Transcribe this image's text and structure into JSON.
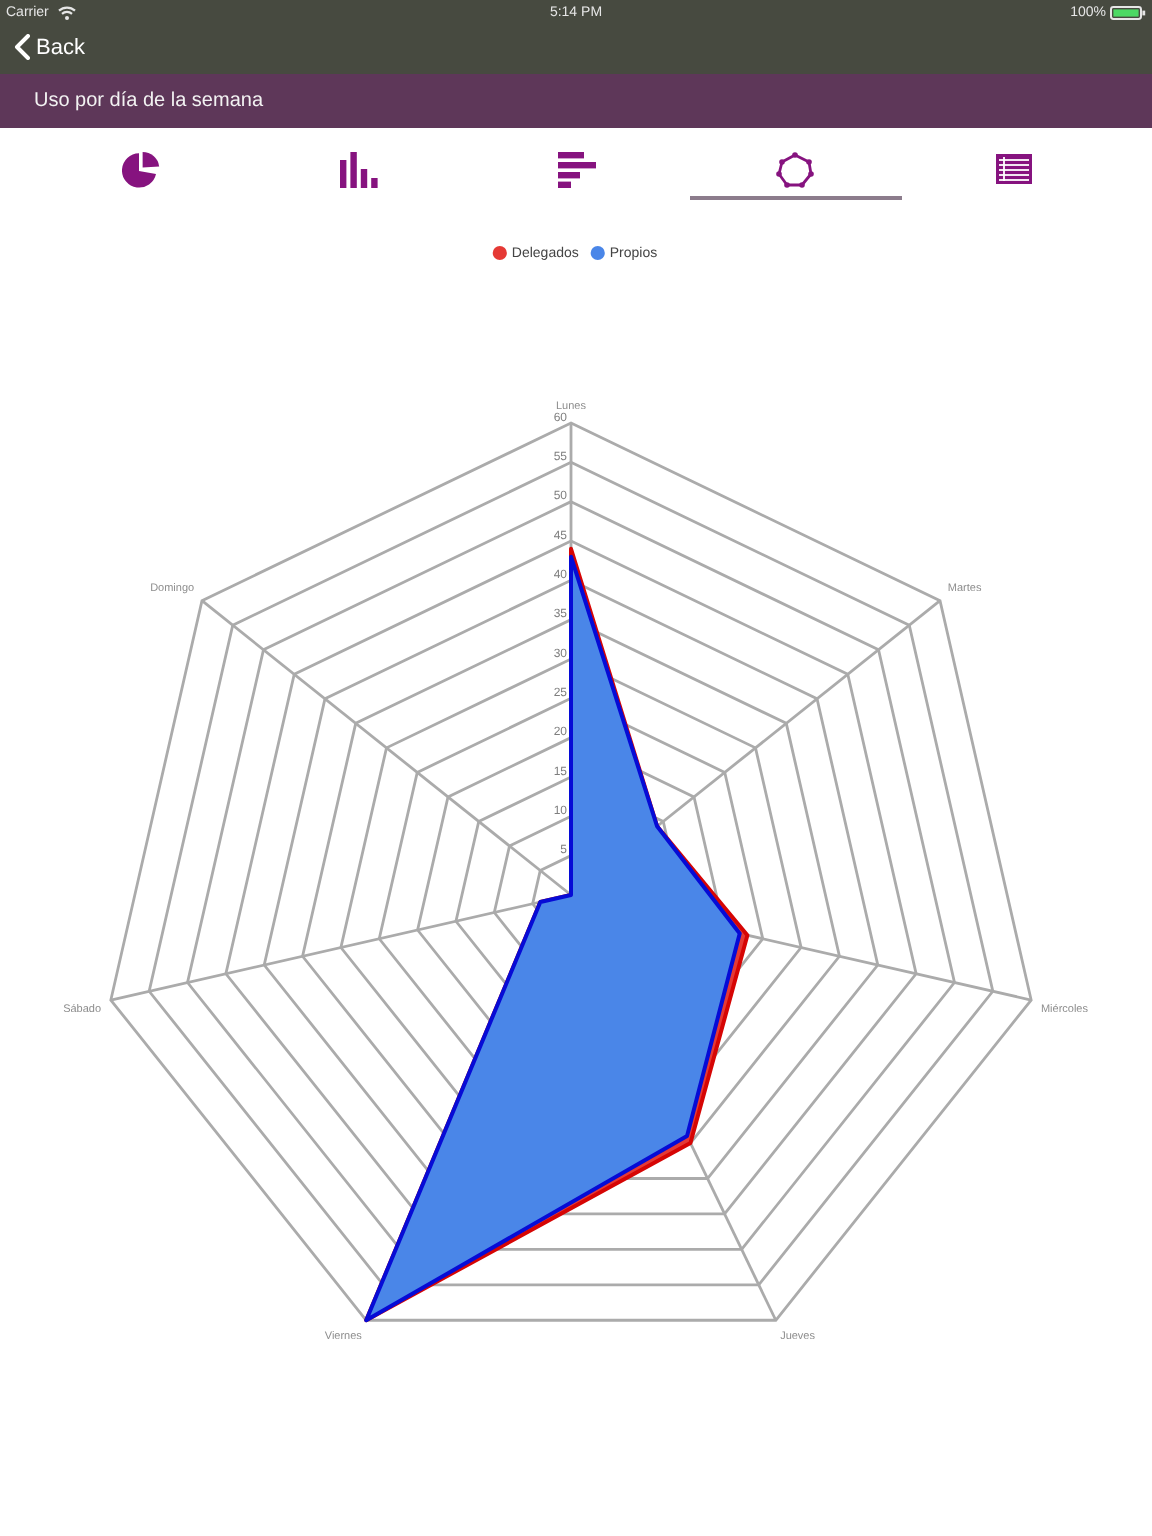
{
  "chart_data": {
    "type": "radar",
    "title": "Uso por día de la semana",
    "annotations": [
      "Carrier",
      "5:14 PM",
      "100%",
      "Back"
    ],
    "categories": [
      "Lunes",
      "Martes",
      "Miércoles",
      "Jueves",
      "Viernes",
      "Sábado",
      "Domingo"
    ],
    "series": [
      {
        "name": "Delegados",
        "color": "#e53935",
        "values": [
          44,
          14,
          23,
          35,
          60,
          4,
          0
        ]
      },
      {
        "name": "Propios",
        "color": "#4a86e8",
        "values": [
          43,
          14,
          22,
          34,
          60,
          4,
          0
        ]
      }
    ],
    "ylim": [
      0,
      60
    ],
    "yticks": [
      5,
      10,
      15,
      20,
      25,
      30,
      35,
      40,
      45,
      50,
      55,
      60
    ],
    "grid": true,
    "legend": "top",
    "marker": "none"
  }
}
